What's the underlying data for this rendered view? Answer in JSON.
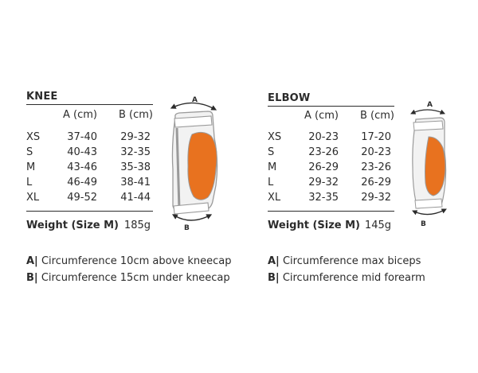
{
  "knee": {
    "title": "KNEE",
    "col_a": "A (cm)",
    "col_b": "B (cm)",
    "rows": [
      {
        "size": "XS",
        "a": "37-40",
        "b": "29-32"
      },
      {
        "size": "S",
        "a": "40-43",
        "b": "32-35"
      },
      {
        "size": "M",
        "a": "43-46",
        "b": "35-38"
      },
      {
        "size": "L",
        "a": "46-49",
        "b": "38-41"
      },
      {
        "size": "XL",
        "a": "49-52",
        "b": "41-44"
      }
    ],
    "weight_label": "Weight (Size M)",
    "weight_value": "185g",
    "diagram": {
      "label_a": "A",
      "label_b": "B"
    },
    "legend": [
      {
        "key": "A|",
        "text": "Circumference 10cm above kneecap"
      },
      {
        "key": "B|",
        "text": "Circumference 15cm under kneecap"
      }
    ]
  },
  "elbow": {
    "title": "ELBOW",
    "col_a": "A (cm)",
    "col_b": "B (cm)",
    "rows": [
      {
        "size": "XS",
        "a": "20-23",
        "b": "17-20"
      },
      {
        "size": "S",
        "a": "23-26",
        "b": "20-23"
      },
      {
        "size": "M",
        "a": "26-29",
        "b": "23-26"
      },
      {
        "size": "L",
        "a": "29-32",
        "b": "26-29"
      },
      {
        "size": "XL",
        "a": "32-35",
        "b": "29-32"
      }
    ],
    "weight_label": "Weight (Size M)",
    "weight_value": "145g",
    "diagram": {
      "label_a": "A",
      "label_b": "B"
    },
    "legend": [
      {
        "key": "A|",
        "text": "Circumference max biceps"
      },
      {
        "key": "B|",
        "text": "Circumference mid forearm"
      }
    ]
  },
  "colors": {
    "text": "#2b2b2b",
    "accent": "#e8721f",
    "outline": "#9a9a9a",
    "pad_fill": "#f2f2f2"
  }
}
